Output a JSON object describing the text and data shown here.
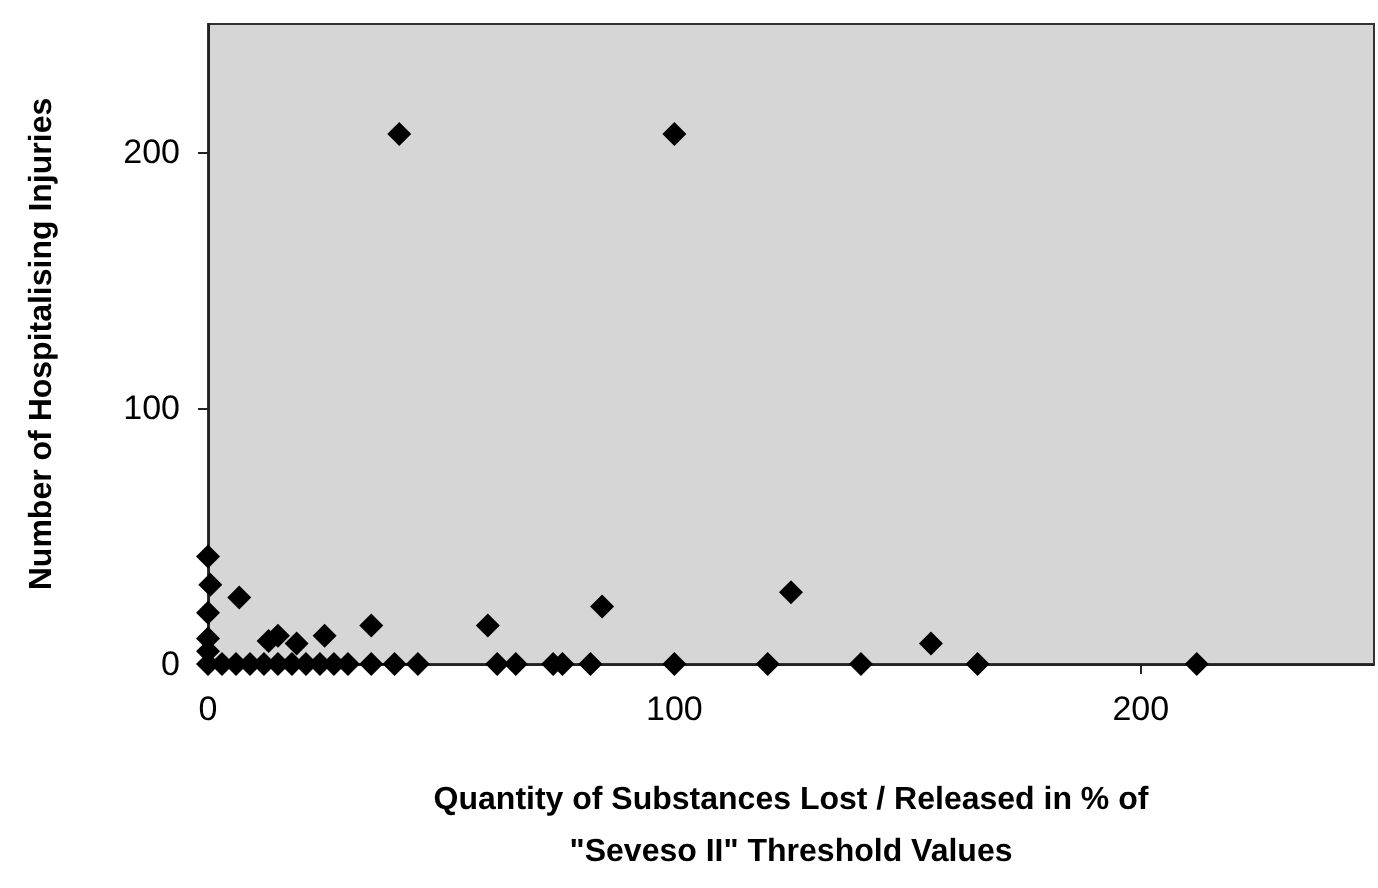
{
  "chart_data": {
    "type": "scatter",
    "xlabel": "Quantity of Substances Lost / Released in % of\n\"Seveso II\" Threshold Values",
    "ylabel": "Number of Hospitalising Injuries",
    "x": [
      41,
      100,
      0,
      0.5,
      6.7,
      0,
      0,
      0,
      15,
      25,
      35,
      19,
      13,
      60,
      84.5,
      125,
      155,
      0,
      3,
      6,
      9,
      12,
      15,
      18,
      21,
      24,
      27,
      30,
      35,
      40,
      45,
      62,
      66,
      74,
      76,
      82,
      100,
      120,
      140,
      165,
      212
    ],
    "values": [
      207,
      207,
      42,
      31,
      26,
      20,
      10,
      5,
      11,
      11,
      15,
      8,
      9,
      15,
      22.5,
      28,
      8,
      0,
      0,
      0,
      0,
      0,
      0,
      0,
      0,
      0,
      0,
      0,
      0,
      0,
      0,
      0,
      0,
      0,
      0,
      0,
      0,
      0,
      0,
      0,
      0
    ],
    "color": "#000000",
    "marker": "diamond",
    "xlim": [
      0,
      250
    ],
    "ylim": [
      0,
      250
    ],
    "xticks": [
      0,
      100,
      200
    ],
    "yticks": [
      0,
      100,
      200
    ],
    "grid": false
  }
}
